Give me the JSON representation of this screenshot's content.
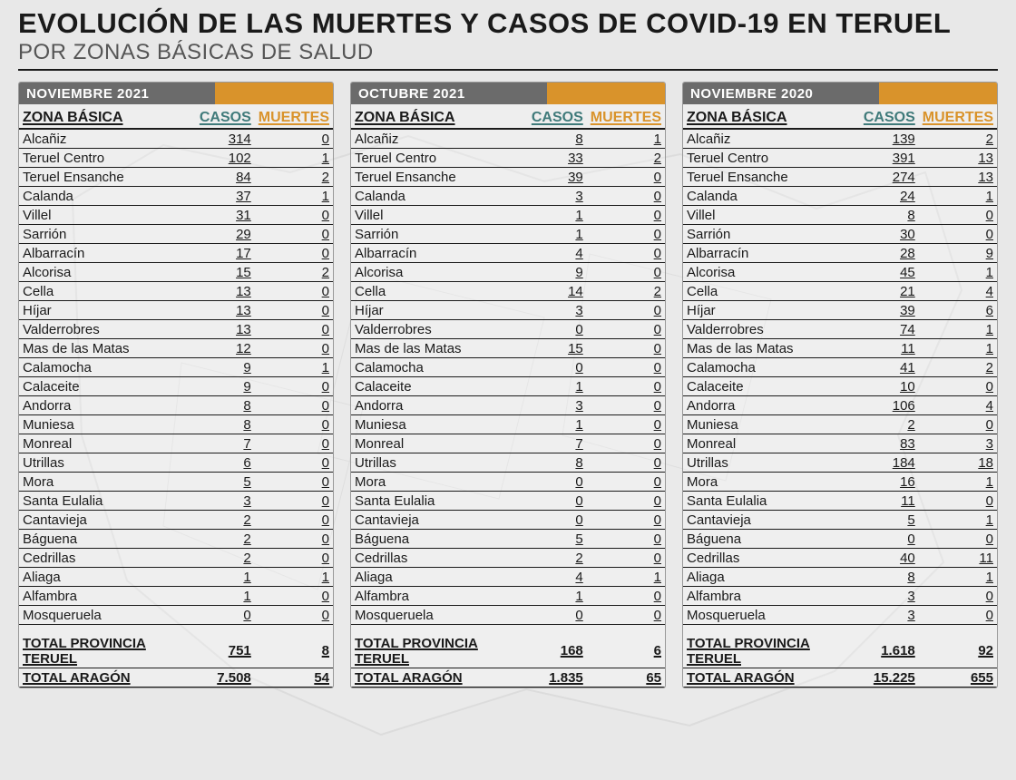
{
  "title": "EVOLUCIÓN DE LAS MUERTES Y CASOS DE COVID-19 EN TERUEL",
  "subtitle": "POR ZONAS BÁSICAS DE SALUD",
  "columns": {
    "zona": "ZONA BÁSICA",
    "casos": "CASOS",
    "muertes": "MUERTES"
  },
  "colors": {
    "header_gray": "#6b6b6b",
    "header_orange": "#d9932b",
    "casos_header": "#3f7a7a",
    "muertes_header": "#d9932b",
    "text": "#1a1a1a",
    "bg": "#e8e8e8"
  },
  "zones": [
    "Alcañiz",
    "Teruel Centro",
    "Teruel Ensanche",
    "Calanda",
    "Villel",
    "Sarrión",
    "Albarracín",
    "Alcorisa",
    "Cella",
    "Híjar",
    "Valderrobres",
    "Mas de las Matas",
    "Calamocha",
    "Calaceite",
    "Andorra",
    "Muniesa",
    "Monreal",
    "Utrillas",
    "Mora",
    "Santa Eulalia",
    "Cantavieja",
    "Báguena",
    "Cedrillas",
    "Aliaga",
    "Alfambra",
    "Mosqueruela"
  ],
  "panels": [
    {
      "label": "NOVIEMBRE 2021",
      "rows": [
        [
          314,
          0
        ],
        [
          102,
          1
        ],
        [
          84,
          2
        ],
        [
          37,
          1
        ],
        [
          31,
          0
        ],
        [
          29,
          0
        ],
        [
          17,
          0
        ],
        [
          15,
          2
        ],
        [
          13,
          0
        ],
        [
          13,
          0
        ],
        [
          13,
          0
        ],
        [
          12,
          0
        ],
        [
          9,
          1
        ],
        [
          9,
          0
        ],
        [
          8,
          0
        ],
        [
          8,
          0
        ],
        [
          7,
          0
        ],
        [
          6,
          0
        ],
        [
          5,
          0
        ],
        [
          3,
          0
        ],
        [
          2,
          0
        ],
        [
          2,
          0
        ],
        [
          2,
          0
        ],
        [
          1,
          1
        ],
        [
          1,
          0
        ],
        [
          0,
          0
        ]
      ],
      "totals": [
        {
          "label": "TOTAL PROVINCIA TERUEL",
          "casos": "751",
          "muertes": "8"
        },
        {
          "label": "TOTAL ARAGÓN",
          "casos": "7.508",
          "muertes": "54"
        }
      ]
    },
    {
      "label": "OCTUBRE 2021",
      "rows": [
        [
          8,
          1
        ],
        [
          33,
          2
        ],
        [
          39,
          0
        ],
        [
          3,
          0
        ],
        [
          1,
          0
        ],
        [
          1,
          0
        ],
        [
          4,
          0
        ],
        [
          9,
          0
        ],
        [
          14,
          2
        ],
        [
          3,
          0
        ],
        [
          0,
          0
        ],
        [
          15,
          0
        ],
        [
          0,
          0
        ],
        [
          1,
          0
        ],
        [
          3,
          0
        ],
        [
          1,
          0
        ],
        [
          7,
          0
        ],
        [
          8,
          0
        ],
        [
          0,
          0
        ],
        [
          0,
          0
        ],
        [
          0,
          0
        ],
        [
          5,
          0
        ],
        [
          2,
          0
        ],
        [
          4,
          1
        ],
        [
          1,
          0
        ],
        [
          0,
          0
        ]
      ],
      "totals": [
        {
          "label": "TOTAL PROVINCIA TERUEL",
          "casos": "168",
          "muertes": "6"
        },
        {
          "label": "TOTAL ARAGÓN",
          "casos": "1.835",
          "muertes": "65"
        }
      ]
    },
    {
      "label": "NOVIEMBRE 2020",
      "rows": [
        [
          139,
          2
        ],
        [
          391,
          13
        ],
        [
          274,
          13
        ],
        [
          24,
          1
        ],
        [
          8,
          0
        ],
        [
          30,
          0
        ],
        [
          28,
          9
        ],
        [
          45,
          1
        ],
        [
          21,
          4
        ],
        [
          39,
          6
        ],
        [
          74,
          1
        ],
        [
          11,
          1
        ],
        [
          41,
          2
        ],
        [
          10,
          0
        ],
        [
          106,
          4
        ],
        [
          2,
          0
        ],
        [
          83,
          3
        ],
        [
          184,
          18
        ],
        [
          16,
          1
        ],
        [
          11,
          0
        ],
        [
          5,
          1
        ],
        [
          0,
          0
        ],
        [
          40,
          11
        ],
        [
          8,
          1
        ],
        [
          3,
          0
        ],
        [
          3,
          0
        ]
      ],
      "totals": [
        {
          "label": "TOTAL PROVINCIA TERUEL",
          "casos": "1.618",
          "muertes": "92"
        },
        {
          "label": "TOTAL ARAGÓN",
          "casos": "15.225",
          "muertes": "655"
        }
      ]
    }
  ]
}
